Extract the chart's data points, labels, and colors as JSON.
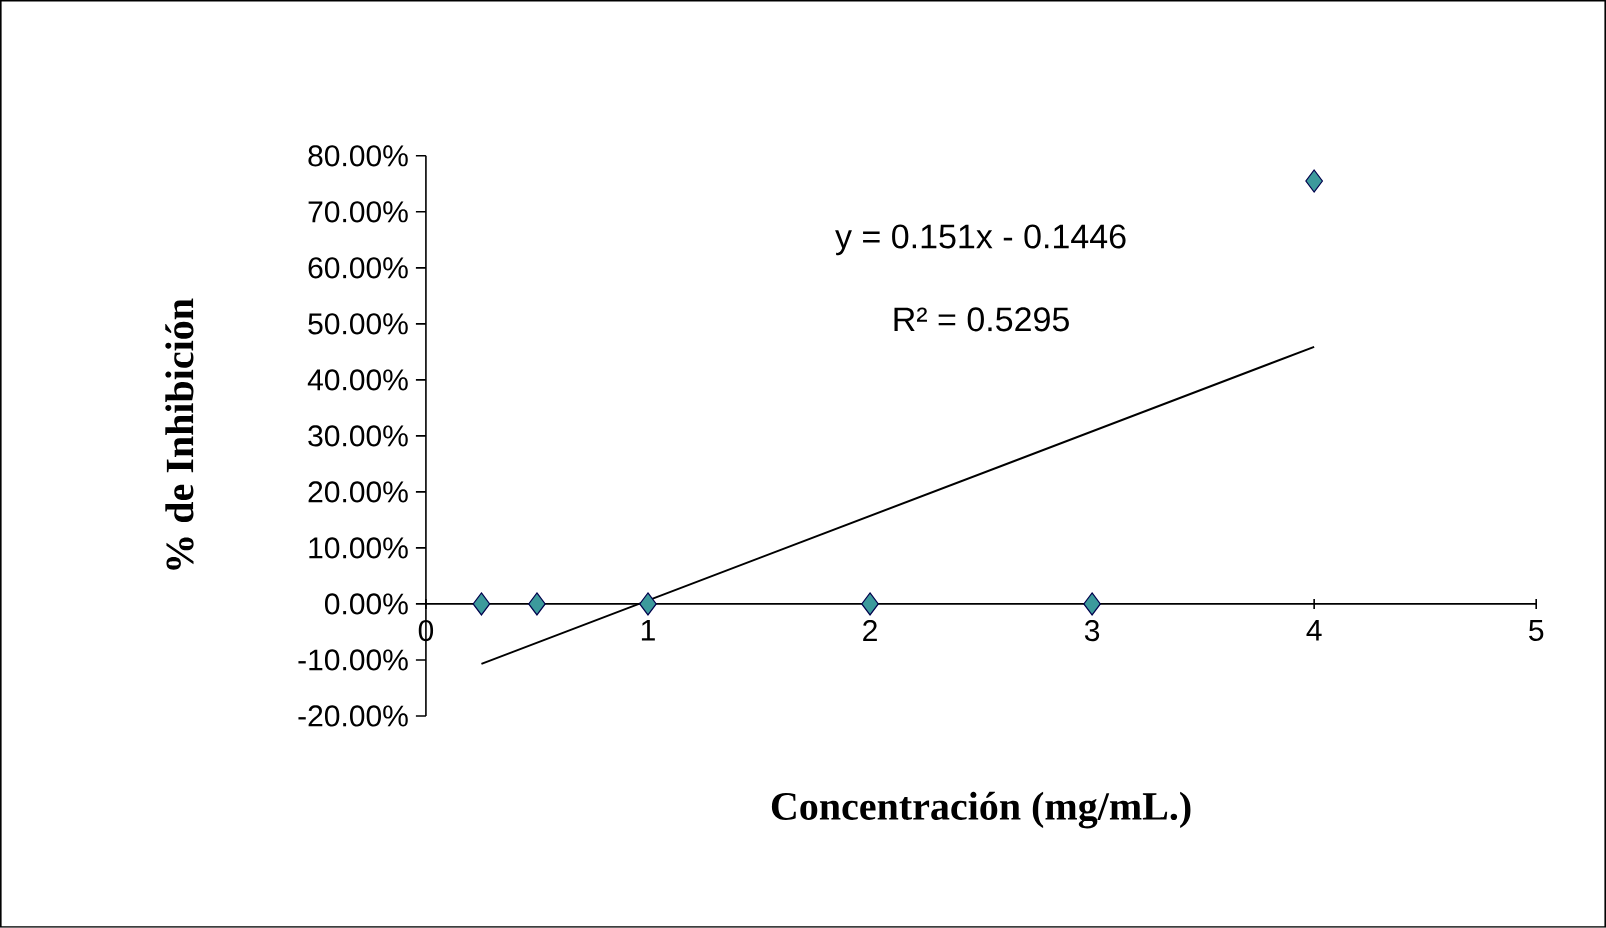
{
  "chart_data": {
    "type": "scatter",
    "xlabel": "Concentración (mg/mL.)",
    "ylabel": "% de Inhibición",
    "series": [
      {
        "color": "#3c9a9c",
        "marker": "diamond",
        "x": [
          0.25,
          0.5,
          1,
          2,
          3,
          4
        ],
        "values": [
          0,
          0,
          0,
          0,
          0,
          0.755
        ]
      },
      {
        "type": "line",
        "color": "#000000",
        "marker": "none",
        "x": [
          0.25,
          4
        ],
        "values": [
          -0.107,
          0.459
        ]
      }
    ],
    "annotations": [
      "y = 0.151x - 0.1446",
      "R² = 0.5295"
    ],
    "xlim": [
      0,
      5
    ],
    "xticks": [
      0,
      1,
      2,
      3,
      4,
      5
    ],
    "ylim": [
      -0.2,
      0.8
    ],
    "yticks": [
      {
        "value": -0.2,
        "label": "-20.00%"
      },
      {
        "value": -0.1,
        "label": "-10.00%"
      },
      {
        "value": 0,
        "label": "0.00%"
      },
      {
        "value": 0.1,
        "label": "10.00%"
      },
      {
        "value": 0.2,
        "label": "20.00%"
      },
      {
        "value": 0.3,
        "label": "30.00%"
      },
      {
        "value": 0.4,
        "label": "40.00%"
      },
      {
        "value": 0.5,
        "label": "50.00%"
      },
      {
        "value": 0.6,
        "label": "60.00%"
      },
      {
        "value": 0.7,
        "label": "70.00%"
      },
      {
        "value": 0.8,
        "label": "80.00%"
      }
    ],
    "grid": false
  }
}
